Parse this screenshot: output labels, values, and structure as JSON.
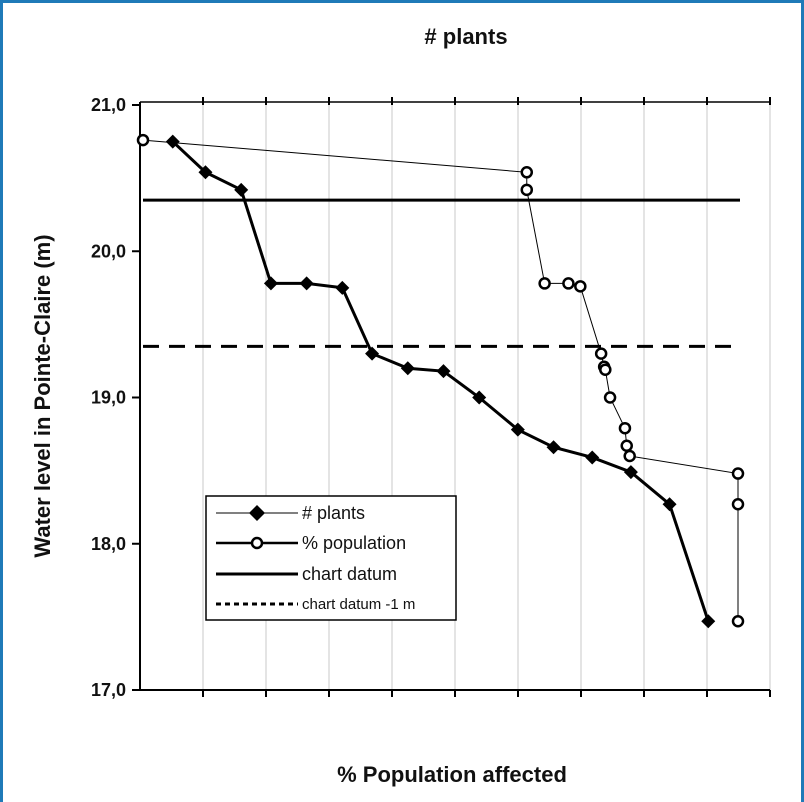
{
  "chart_data": {
    "type": "line",
    "title": "# plants",
    "xlabel": "% Population affected",
    "ylabel": "Water level in Pointe-Claire (m)",
    "ylim": [
      17.0,
      21.0
    ],
    "yticks": [
      "21,0",
      "20,0",
      "19,0",
      "18,0",
      "17,0"
    ],
    "grid": "vertical",
    "legend_position": "lower-left",
    "series": [
      {
        "name": "# plants",
        "marker": "diamond",
        "color": "#000000",
        "points": [
          [
            0.05,
            20.75
          ],
          [
            0.105,
            20.54
          ],
          [
            0.165,
            20.42
          ],
          [
            0.215,
            19.78
          ],
          [
            0.275,
            19.78
          ],
          [
            0.335,
            19.75
          ],
          [
            0.385,
            19.3
          ],
          [
            0.445,
            19.2
          ],
          [
            0.505,
            19.18
          ],
          [
            0.565,
            19.0
          ],
          [
            0.63,
            18.78
          ],
          [
            0.69,
            18.66
          ],
          [
            0.755,
            18.59
          ],
          [
            0.82,
            18.49
          ],
          [
            0.885,
            18.27
          ],
          [
            0.95,
            17.47
          ]
        ]
      },
      {
        "name": "% population",
        "marker": "open-circle",
        "color": "#000000",
        "points": [
          [
            0.0,
            20.76
          ],
          [
            0.645,
            20.54
          ],
          [
            0.645,
            20.42
          ],
          [
            0.675,
            19.78
          ],
          [
            0.715,
            19.78
          ],
          [
            0.735,
            19.76
          ],
          [
            0.77,
            19.3
          ],
          [
            0.775,
            19.21
          ],
          [
            0.777,
            19.19
          ],
          [
            0.785,
            19.0
          ],
          [
            0.81,
            18.79
          ],
          [
            0.813,
            18.67
          ],
          [
            0.818,
            18.6
          ],
          [
            1.0,
            18.48
          ],
          [
            1.0,
            18.27
          ],
          [
            1.0,
            17.47
          ]
        ]
      },
      {
        "name": "chart datum",
        "style": "solid",
        "color": "#000000",
        "y": 20.35
      },
      {
        "name": "chart datum -1 m",
        "style": "dashed",
        "color": "#000000",
        "y": 19.35
      }
    ]
  }
}
